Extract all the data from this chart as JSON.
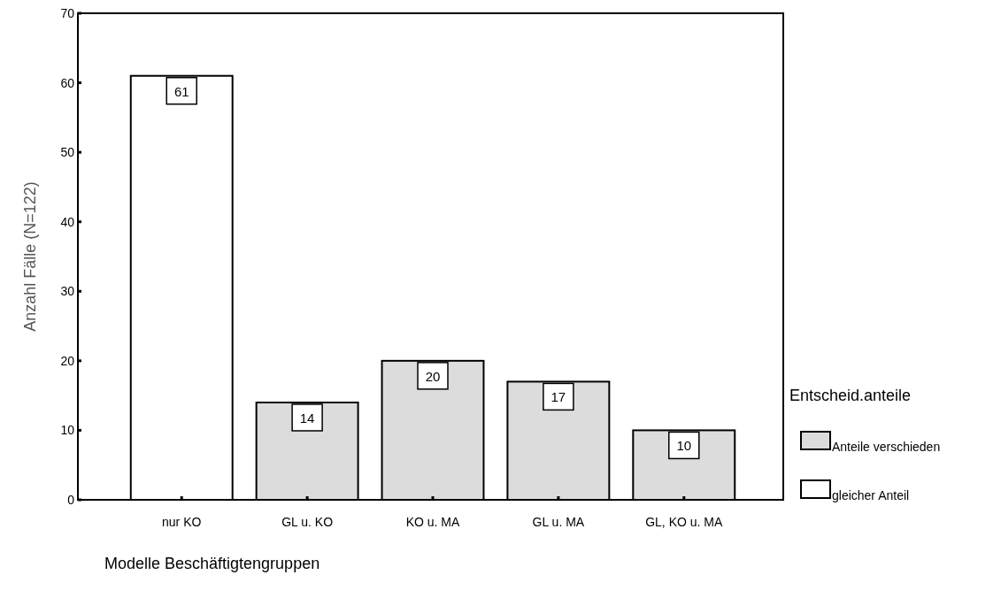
{
  "chart_data": {
    "type": "bar",
    "xlabel": "Modelle Beschäftigtengruppen",
    "ylabel": "Anzahl Fälle (N=122)",
    "legend_title": "Entscheid.anteile",
    "categories": [
      "nur KO",
      "GL u. KO",
      "KO u. MA",
      "GL u. MA",
      "GL, KO u. MA"
    ],
    "series": [
      {
        "name": "Anteile verschieden",
        "color": "#dcdcdc",
        "values": [
          null,
          14,
          20,
          17,
          10
        ]
      },
      {
        "name": "gleicher Anteil",
        "color": "#ffffff",
        "values": [
          61,
          null,
          null,
          null,
          null
        ]
      }
    ],
    "ylim": [
      0,
      70
    ],
    "yticks": [
      0,
      10,
      20,
      30,
      40,
      50,
      60,
      70
    ],
    "grid": false,
    "legend": "right",
    "data_labels": true
  }
}
